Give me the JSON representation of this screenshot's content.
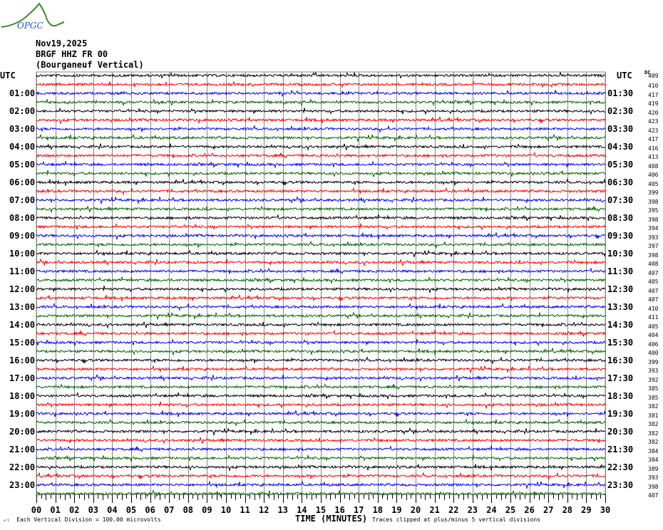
{
  "header": {
    "date": "Nov19,2025",
    "station": "BRGF HHZ FR 00",
    "name": "(Bourganeuf Vertical)",
    "logo_text": "OPGC"
  },
  "footer": {
    "scale": "Each Vertical Division =  100.00 microvolts",
    "xlabel": "TIME (MINUTES)",
    "clip": "Traces clipped at plus/minus 5 vertical divisions"
  },
  "chart_data": {
    "type": "line",
    "title": "",
    "xlabel": "TIME (MINUTES)",
    "xlim": [
      0,
      30
    ],
    "xticks": [
      "00",
      "01",
      "02",
      "03",
      "04",
      "05",
      "06",
      "07",
      "08",
      "09",
      "10",
      "11",
      "12",
      "13",
      "14",
      "15",
      "16",
      "17",
      "18",
      "19",
      "20",
      "21",
      "22",
      "23",
      "24",
      "25",
      "26",
      "27",
      "28",
      "29",
      "30"
    ],
    "grid": true,
    "left_axis_title": "UTC",
    "right_axis_title": "UTC",
    "left_labels": [
      "01:00",
      "02:00",
      "03:00",
      "04:00",
      "05:00",
      "06:00",
      "07:00",
      "08:00",
      "09:00",
      "10:00",
      "11:00",
      "12:00",
      "13:00",
      "14:00",
      "15:00",
      "16:00",
      "17:00",
      "18:00",
      "19:00",
      "20:00",
      "21:00",
      "22:00",
      "23:00"
    ],
    "right_labels": [
      "01:30",
      "02:30",
      "03:30",
      "04:30",
      "05:30",
      "06:30",
      "07:30",
      "08:30",
      "09:30",
      "10:30",
      "11:30",
      "12:30",
      "13:30",
      "14:30",
      "15:30",
      "16:30",
      "17:30",
      "18:30",
      "19:30",
      "20:30",
      "21:30",
      "22:30",
      "23:30"
    ],
    "dc_title": "DC",
    "dc_offsets": [
      409,
      410,
      417,
      419,
      420,
      423,
      423,
      417,
      416,
      413,
      408,
      406,
      405,
      399,
      398,
      395,
      398,
      394,
      393,
      397,
      398,
      408,
      407,
      405,
      407,
      407,
      410,
      411,
      405,
      404,
      406,
      400,
      399,
      393,
      392,
      385,
      385,
      382,
      381,
      382,
      382,
      382,
      384,
      384,
      389,
      393,
      398,
      407
    ],
    "trace_colors": [
      "#000000",
      "#ff0000",
      "#0000ff",
      "#006400"
    ],
    "trace_count": 48,
    "trace_minutes": 30,
    "units": "microvolts",
    "vertical_division": 100.0,
    "clip_divisions": 5
  }
}
